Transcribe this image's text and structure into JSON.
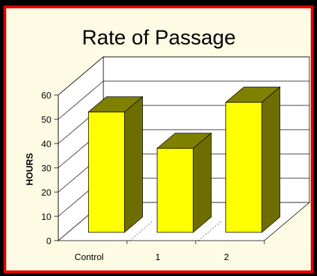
{
  "chart_data": {
    "type": "bar",
    "title": "Rate of Passage",
    "ylabel": "HOURS",
    "xlabel": "",
    "categories": [
      "Control",
      "1",
      "2"
    ],
    "values": [
      53,
      38,
      57
    ],
    "ylim": [
      0,
      60
    ],
    "yticks": [
      "0",
      "10",
      "20",
      "30",
      "40",
      "50",
      "60"
    ],
    "grid": true,
    "style": "3d",
    "bar_front_color": "#ffff00",
    "bar_top_color": "#808000",
    "bar_side_color": "#6e6e00",
    "background_color": "#fdfbe4",
    "border_color": "#e00000"
  }
}
